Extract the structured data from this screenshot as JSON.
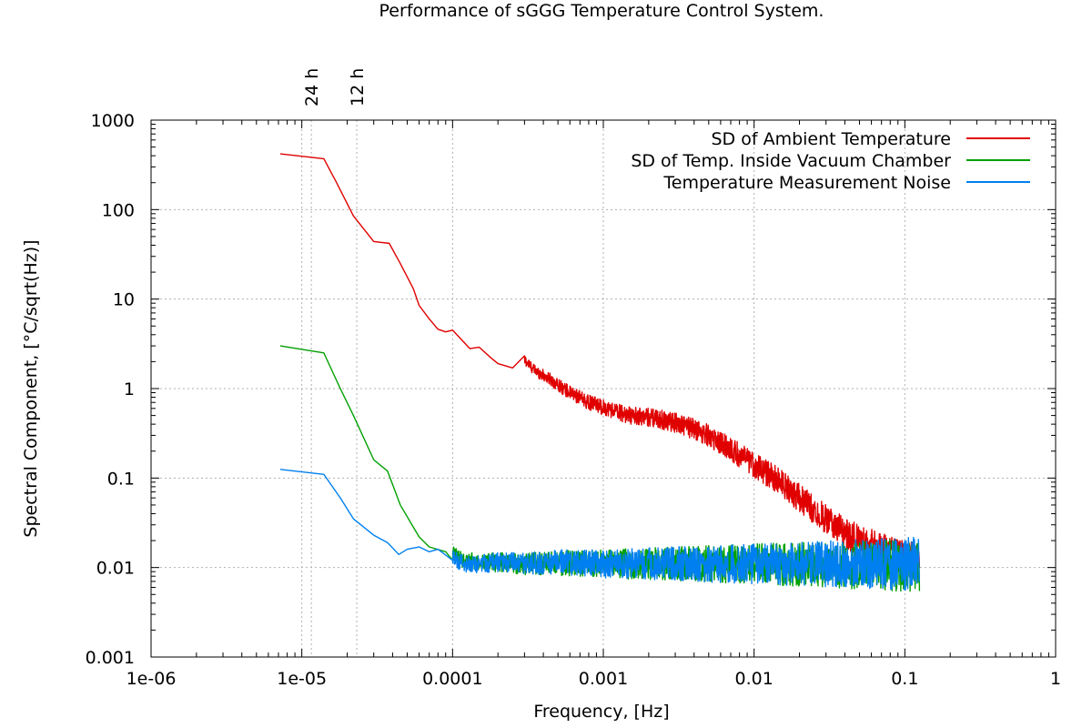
{
  "chart_data": {
    "type": "line",
    "title": "Performance of sGGG Temperature Control System.",
    "xlabel": "Frequency, [Hz]",
    "ylabel": "Spectral Component, [°C/sqrt(Hz)]",
    "x_scale": "log",
    "y_scale": "log",
    "xlim": [
      1e-06,
      1
    ],
    "ylim": [
      0.001,
      1000
    ],
    "grid": true,
    "legend_position": "top-right",
    "x_ticks": [
      {
        "value": 1e-06,
        "label": "1e-06"
      },
      {
        "value": 1e-05,
        "label": "1e-05"
      },
      {
        "value": 0.0001,
        "label": "0.0001"
      },
      {
        "value": 0.001,
        "label": "0.001"
      },
      {
        "value": 0.01,
        "label": "0.01"
      },
      {
        "value": 0.1,
        "label": "0.1"
      },
      {
        "value": 1,
        "label": "1"
      }
    ],
    "y_ticks": [
      {
        "value": 0.001,
        "label": "0.001"
      },
      {
        "value": 0.01,
        "label": "0.01"
      },
      {
        "value": 0.1,
        "label": "0.1"
      },
      {
        "value": 1,
        "label": "1"
      },
      {
        "value": 10,
        "label": "10"
      },
      {
        "value": 100,
        "label": "100"
      },
      {
        "value": 1000,
        "label": "1000"
      }
    ],
    "top_markers": [
      {
        "value": 1.157e-05,
        "label": "24 h"
      },
      {
        "value": 2.315e-05,
        "label": "12 h"
      }
    ],
    "series": [
      {
        "name": "SD of Ambient Temperature",
        "color": "#e00000",
        "points": [
          [
            7.2e-06,
            420
          ],
          [
            1.4e-05,
            370
          ],
          [
            1.7e-05,
            200
          ],
          [
            2.2e-05,
            85
          ],
          [
            3e-05,
            44
          ],
          [
            3.8e-05,
            42
          ],
          [
            4.5e-05,
            25
          ],
          [
            5.5e-05,
            13
          ],
          [
            6e-05,
            8.5
          ],
          [
            7e-05,
            6
          ],
          [
            8e-05,
            4.6
          ],
          [
            9e-05,
            4.3
          ],
          [
            0.0001,
            4.5
          ],
          [
            0.000115,
            3.5
          ],
          [
            0.00013,
            2.8
          ],
          [
            0.00015,
            2.9
          ],
          [
            0.00018,
            2.2
          ],
          [
            0.0002,
            1.9
          ],
          [
            0.00025,
            1.7
          ],
          [
            0.0003,
            2.1
          ],
          [
            0.00035,
            1.6
          ],
          [
            0.00045,
            1.25
          ],
          [
            0.0006,
            0.9
          ],
          [
            0.0008,
            0.7
          ],
          [
            0.001,
            0.62
          ],
          [
            0.0015,
            0.5
          ],
          [
            0.002,
            0.48
          ],
          [
            0.003,
            0.42
          ],
          [
            0.004,
            0.35
          ],
          [
            0.005,
            0.3
          ],
          [
            0.007,
            0.21
          ],
          [
            0.01,
            0.14
          ],
          [
            0.015,
            0.09
          ],
          [
            0.02,
            0.06
          ],
          [
            0.03,
            0.035
          ],
          [
            0.04,
            0.024
          ],
          [
            0.05,
            0.02
          ],
          [
            0.07,
            0.016
          ],
          [
            0.1,
            0.013
          ],
          [
            0.125,
            0.012
          ]
        ],
        "noise_from": 0.0003,
        "noise_amplitude": 0.1
      },
      {
        "name": "SD of Temp. Inside Vacuum Chamber",
        "color": "#00a000",
        "points": [
          [
            7.2e-06,
            3.0
          ],
          [
            1.4e-05,
            2.5
          ],
          [
            1.8e-05,
            1.0
          ],
          [
            2.2e-05,
            0.5
          ],
          [
            3e-05,
            0.16
          ],
          [
            3.7e-05,
            0.12
          ],
          [
            4.5e-05,
            0.05
          ],
          [
            6e-05,
            0.022
          ],
          [
            7e-05,
            0.017
          ],
          [
            9e-05,
            0.015
          ],
          [
            0.0001,
            0.014
          ],
          [
            0.00012,
            0.012
          ],
          [
            0.00015,
            0.0115
          ],
          [
            0.0002,
            0.0115
          ],
          [
            0.0003,
            0.011
          ],
          [
            0.0005,
            0.0112
          ],
          [
            0.001,
            0.011
          ],
          [
            0.01,
            0.011
          ],
          [
            0.1,
            0.0105
          ],
          [
            0.125,
            0.0105
          ]
        ],
        "noise_from": 0.0001,
        "noise_amplitude": 0.15
      },
      {
        "name": "Temperature Measurement Noise",
        "color": "#0080f0",
        "points": [
          [
            7.2e-06,
            0.125
          ],
          [
            1.4e-05,
            0.11
          ],
          [
            1.8e-05,
            0.06
          ],
          [
            2.2e-05,
            0.035
          ],
          [
            3e-05,
            0.023
          ],
          [
            3.7e-05,
            0.019
          ],
          [
            4.4e-05,
            0.014
          ],
          [
            5e-05,
            0.016
          ],
          [
            6e-05,
            0.017
          ],
          [
            7e-05,
            0.015
          ],
          [
            8e-05,
            0.016
          ],
          [
            0.0001,
            0.0125
          ],
          [
            0.00012,
            0.011
          ],
          [
            0.00015,
            0.011
          ],
          [
            0.0002,
            0.0115
          ],
          [
            0.0003,
            0.011
          ],
          [
            0.0005,
            0.0115
          ],
          [
            0.001,
            0.011
          ],
          [
            0.01,
            0.011
          ],
          [
            0.1,
            0.011
          ],
          [
            0.125,
            0.011
          ]
        ],
        "noise_from": 0.0001,
        "noise_amplitude": 0.15
      }
    ]
  }
}
